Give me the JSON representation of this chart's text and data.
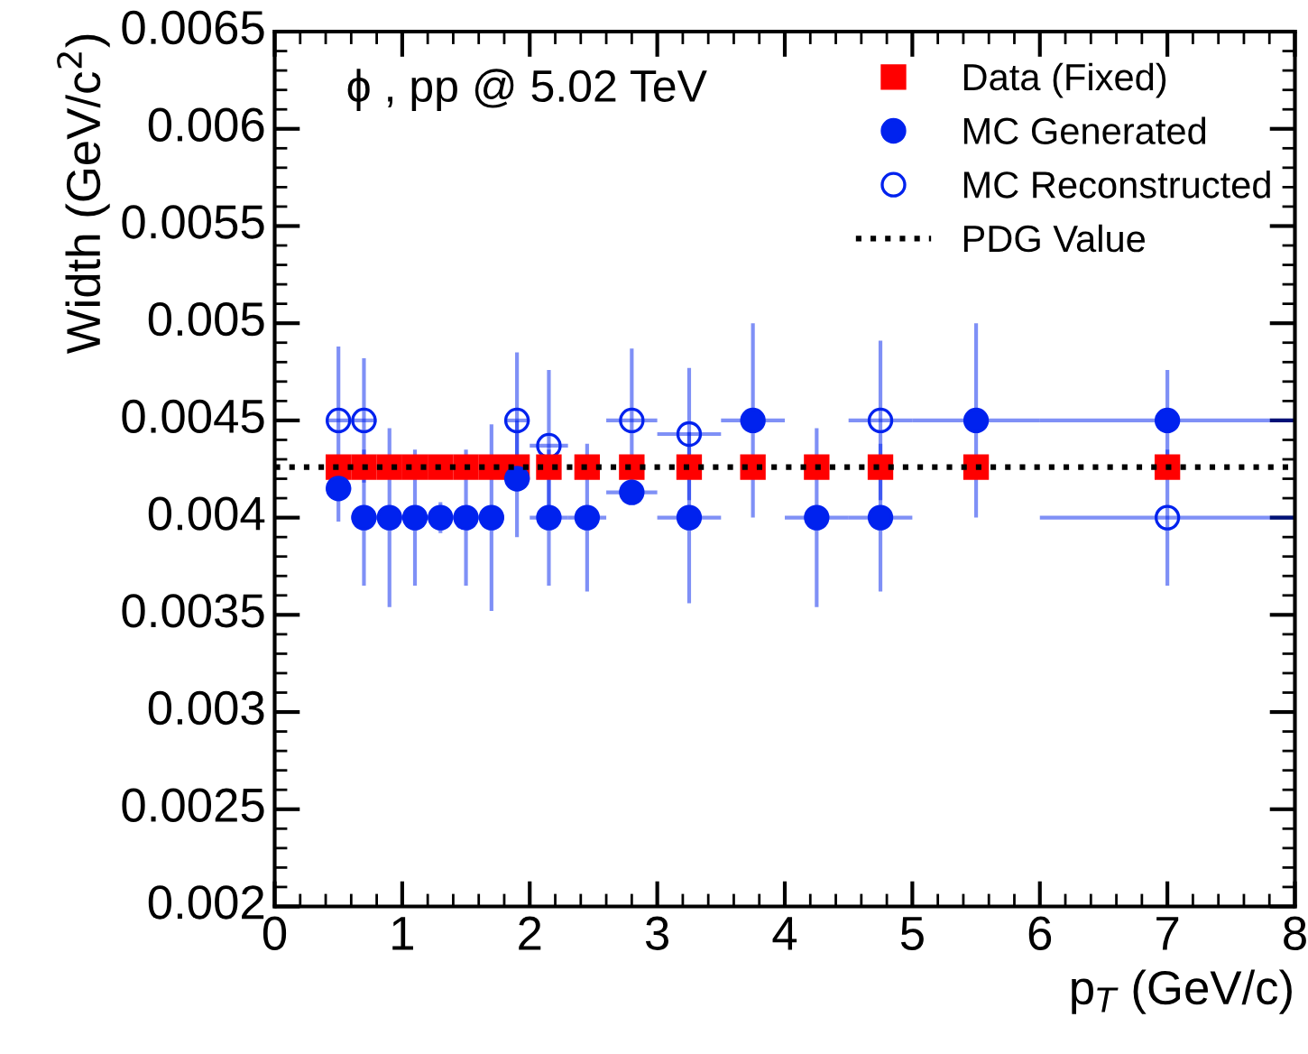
{
  "chart_data": {
    "type": "scatter",
    "xlabel": "p$_{T}$ (GeV/c)",
    "ylabel": "Width (GeV/c$^{2}$)",
    "annotations": [
      "ϕ , pp @ 5.02 TeV"
    ],
    "x": [
      0.5,
      0.7,
      0.9,
      1.1,
      1.3,
      1.5,
      1.7,
      1.9,
      2.15,
      2.45,
      2.8,
      3.25,
      3.75,
      4.25,
      4.75,
      5.5,
      7.0
    ],
    "series": [
      {
        "name": "Data (Fixed)",
        "color": "#ff0000",
        "marker": "square",
        "values": [
          0.00426,
          0.00426,
          0.00426,
          0.00426,
          0.00426,
          0.00426,
          0.00426,
          0.00426,
          0.00426,
          0.00426,
          0.00426,
          0.00426,
          0.00426,
          0.00426,
          0.00426,
          0.00426,
          0.00426
        ]
      },
      {
        "name": "MC Generated",
        "color": "#0022ee",
        "marker": "circle",
        "values": [
          0.00415,
          0.004,
          0.004,
          0.004,
          0.004,
          0.004,
          0.004,
          0.0042,
          0.004,
          0.004,
          0.00413,
          0.004,
          0.0045,
          0.004,
          0.004,
          0.0045,
          0.0045
        ],
        "errors": [
          0.00017,
          0.00035,
          0.00046,
          0.00035,
          8e-05,
          0.00035,
          0.00048,
          0.0003,
          0.00035,
          0.00038,
          5e-05,
          0.00044,
          0.0005,
          0.00046,
          0.00038,
          0.0005,
          0.00026
        ],
        "xerrors": [
          0.1,
          0.1,
          0.1,
          0.1,
          0.1,
          0.1,
          0.1,
          0.1,
          0.15,
          0.15,
          0.2,
          0.25,
          0.25,
          0.25,
          0.25,
          0.5,
          1.0
        ]
      },
      {
        "name": "MC Reconstructed",
        "color": "#0022ee",
        "marker": "circle",
        "values": [
          0.0045,
          0.0045,
          null,
          null,
          null,
          null,
          null,
          0.0045,
          0.00437,
          null,
          0.0045,
          0.00443,
          null,
          null,
          0.0045,
          null,
          0.004
        ],
        "errors": [
          0.00038,
          0.00032,
          null,
          null,
          null,
          null,
          null,
          0.00035,
          0.00039,
          null,
          0.00037,
          0.00034,
          null,
          null,
          0.00041,
          null,
          0.00035
        ],
        "xerrors": [
          0.1,
          0.1,
          null,
          null,
          null,
          null,
          null,
          0.1,
          0.15,
          null,
          0.2,
          0.25,
          null,
          null,
          0.25,
          null,
          1.0
        ]
      }
    ],
    "ref_lines": [
      {
        "axis": "y",
        "value": 0.00426,
        "label": "PDG Value",
        "color": "#000000",
        "line_style": "dotted"
      }
    ],
    "xlim": [
      0,
      8
    ],
    "xticks": [
      0,
      1,
      2,
      3,
      4,
      5,
      6,
      7,
      8
    ],
    "ylim": [
      0.002,
      0.0065
    ],
    "yticks": [
      0.002,
      0.0025,
      0.003,
      0.0035,
      0.004,
      0.0045,
      0.005,
      0.0055,
      0.006,
      0.0065
    ],
    "grid": false,
    "legend": "top right"
  }
}
